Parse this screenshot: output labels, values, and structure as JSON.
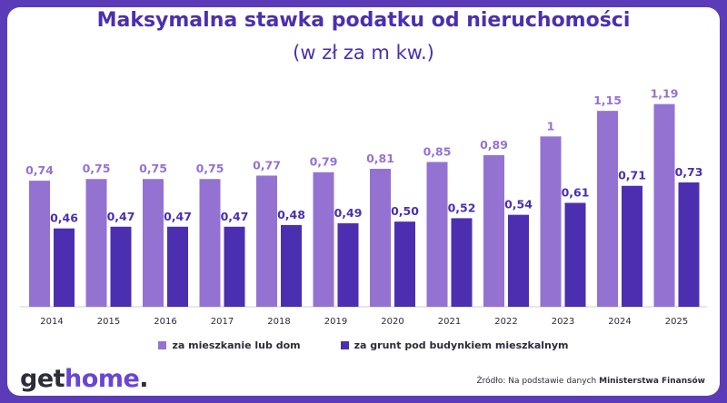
{
  "title": "Maksymalna stawka podatku od nieruchomości",
  "subtitle": "(w zł za m kw.)",
  "colors": {
    "background": "#5b3bb8",
    "series1": "#9472d2",
    "series2": "#4b2fb0",
    "text": "#4b2fb0"
  },
  "chart_data": {
    "type": "bar",
    "categories": [
      "2014",
      "2015",
      "2016",
      "2017",
      "2018",
      "2019",
      "2020",
      "2021",
      "2022",
      "2023",
      "2024",
      "2025"
    ],
    "series": [
      {
        "name": "za mieszkanie lub dom",
        "values": [
          0.74,
          0.75,
          0.75,
          0.75,
          0.77,
          0.79,
          0.81,
          0.85,
          0.89,
          1,
          1.15,
          1.19
        ],
        "labels": [
          "0,74",
          "0,75",
          "0,75",
          "0,75",
          "0,77",
          "0,79",
          "0,81",
          "0,85",
          "0,89",
          "1",
          "1,15",
          "1,19"
        ]
      },
      {
        "name": "za grunt pod budynkiem mieszkalnym",
        "values": [
          0.46,
          0.47,
          0.47,
          0.47,
          0.48,
          0.49,
          0.5,
          0.52,
          0.54,
          0.61,
          0.71,
          0.73
        ],
        "labels": [
          "0,46",
          "0,47",
          "0,47",
          "0,47",
          "0,48",
          "0,49",
          "0,50",
          "0,52",
          "0,54",
          "0,61",
          "0,71",
          "0,73"
        ]
      }
    ],
    "ylim": [
      0,
      1.3
    ],
    "grid": false
  },
  "brand": {
    "logo_main": "get",
    "logo_accent": "home",
    "logo_dot": "."
  },
  "source": {
    "prefix": "Źródło: Na podstawie danych ",
    "name": "Ministerstwa Finansów"
  }
}
